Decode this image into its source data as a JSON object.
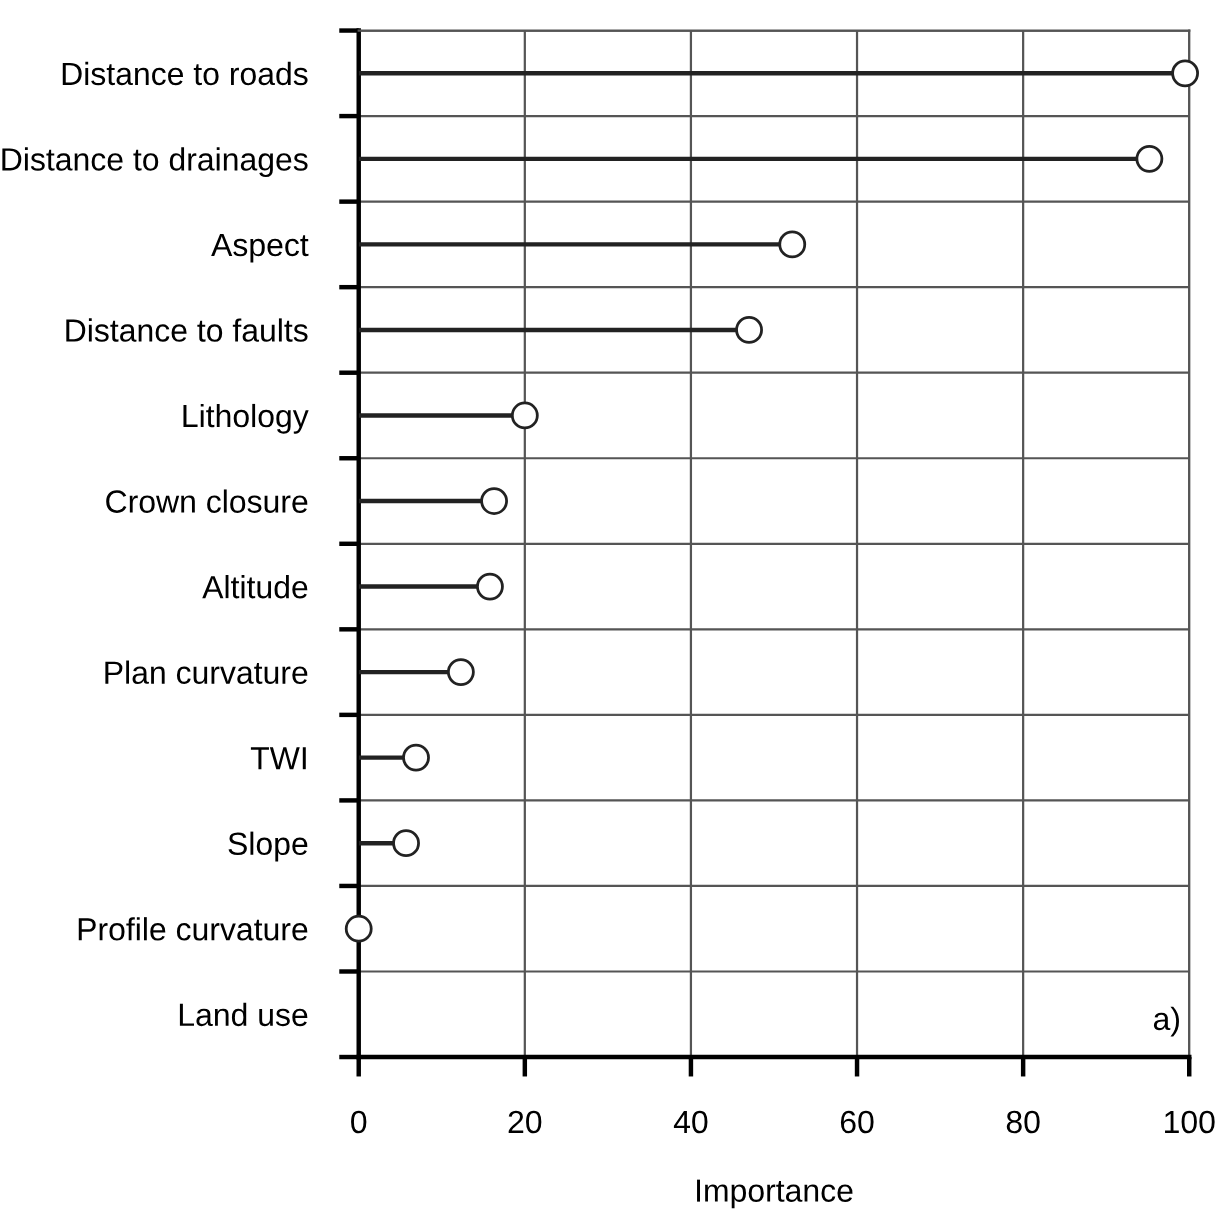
{
  "chart_data": {
    "type": "lollipop",
    "orientation": "horizontal",
    "categories": [
      "Distance to roads",
      "Distance to drainages",
      "Aspect",
      "Distance to faults",
      "Lithology",
      "Crown closure",
      "Altitude",
      "Plan curvature",
      "TWI",
      "Slope",
      "Profile curvature",
      "Land use"
    ],
    "values": [
      99.5,
      95.2,
      52.2,
      47.0,
      20.0,
      16.3,
      15.8,
      12.3,
      6.9,
      5.7,
      0,
      null
    ],
    "color": "#222222",
    "marker": "circle",
    "grid": true,
    "xlim": [
      0,
      100
    ],
    "xticks": [
      0,
      20,
      40,
      60,
      80,
      100
    ],
    "xlabel": "Importance",
    "annotations": [
      "a)"
    ]
  }
}
